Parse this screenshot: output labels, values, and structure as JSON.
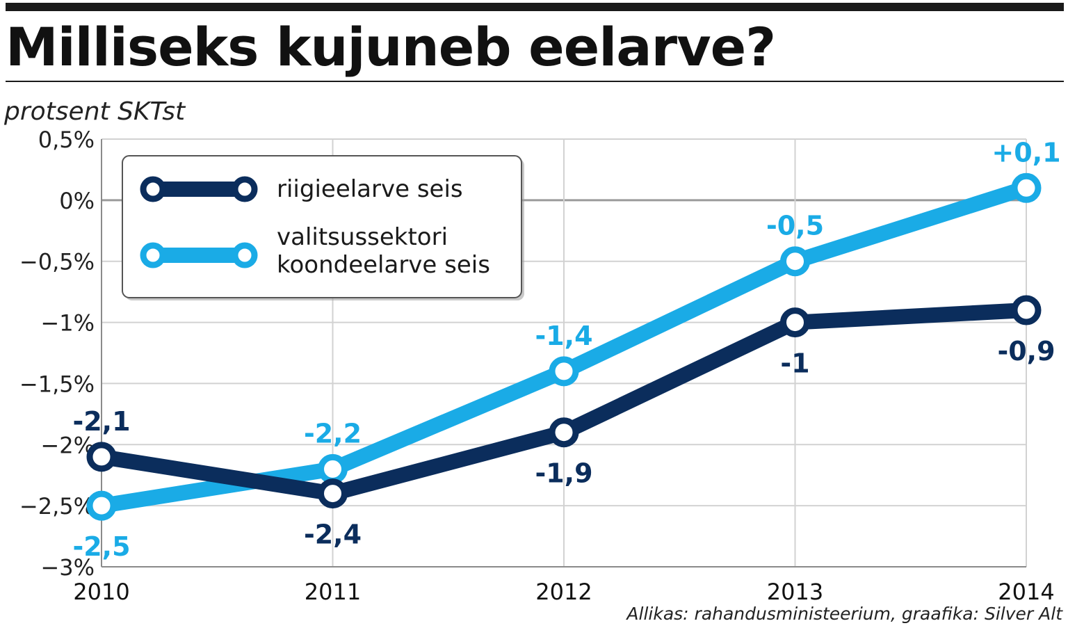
{
  "title": "Milliseks kujuneb eelarve?",
  "source": "Allikas: rahandusministeerium, graafika: Silver Alt",
  "chart_data": {
    "type": "line",
    "ylabel": "protsent SKTst",
    "x": [
      "2010",
      "2011",
      "2012",
      "2013",
      "2014"
    ],
    "ylim": [
      -3,
      0.5
    ],
    "yticks": [
      {
        "value": 0.5,
        "label": "0,5%"
      },
      {
        "value": 0,
        "label": "0%"
      },
      {
        "value": -0.5,
        "label": "−0,5%"
      },
      {
        "value": -1,
        "label": "−1%"
      },
      {
        "value": -1.5,
        "label": "−1,5%"
      },
      {
        "value": -2,
        "label": "−2%"
      },
      {
        "value": -2.5,
        "label": "−2,5%"
      },
      {
        "value": -3,
        "label": "−3%"
      }
    ],
    "grid": true,
    "legend": "top-left",
    "series": [
      {
        "name": "riigieelarve seis",
        "color": "#0b2d5c",
        "values": [
          -2.1,
          -2.4,
          -1.9,
          -1.0,
          -0.9
        ],
        "labels": [
          "-2,1",
          "-2,4",
          "-1,9",
          "-1",
          "-0,9"
        ],
        "label_pos": [
          "above",
          "below",
          "below",
          "below",
          "below"
        ]
      },
      {
        "name_lines": [
          "valitsussektori",
          "koondeelarve seis"
        ],
        "color": "#1aabe6",
        "values": [
          -2.5,
          -2.2,
          -1.4,
          -0.5,
          0.1
        ],
        "labels": [
          "-2,5",
          "-2,2",
          "-1,4",
          "-0,5",
          "+0,1"
        ],
        "label_pos": [
          "below",
          "above",
          "above",
          "above",
          "above"
        ]
      }
    ]
  }
}
